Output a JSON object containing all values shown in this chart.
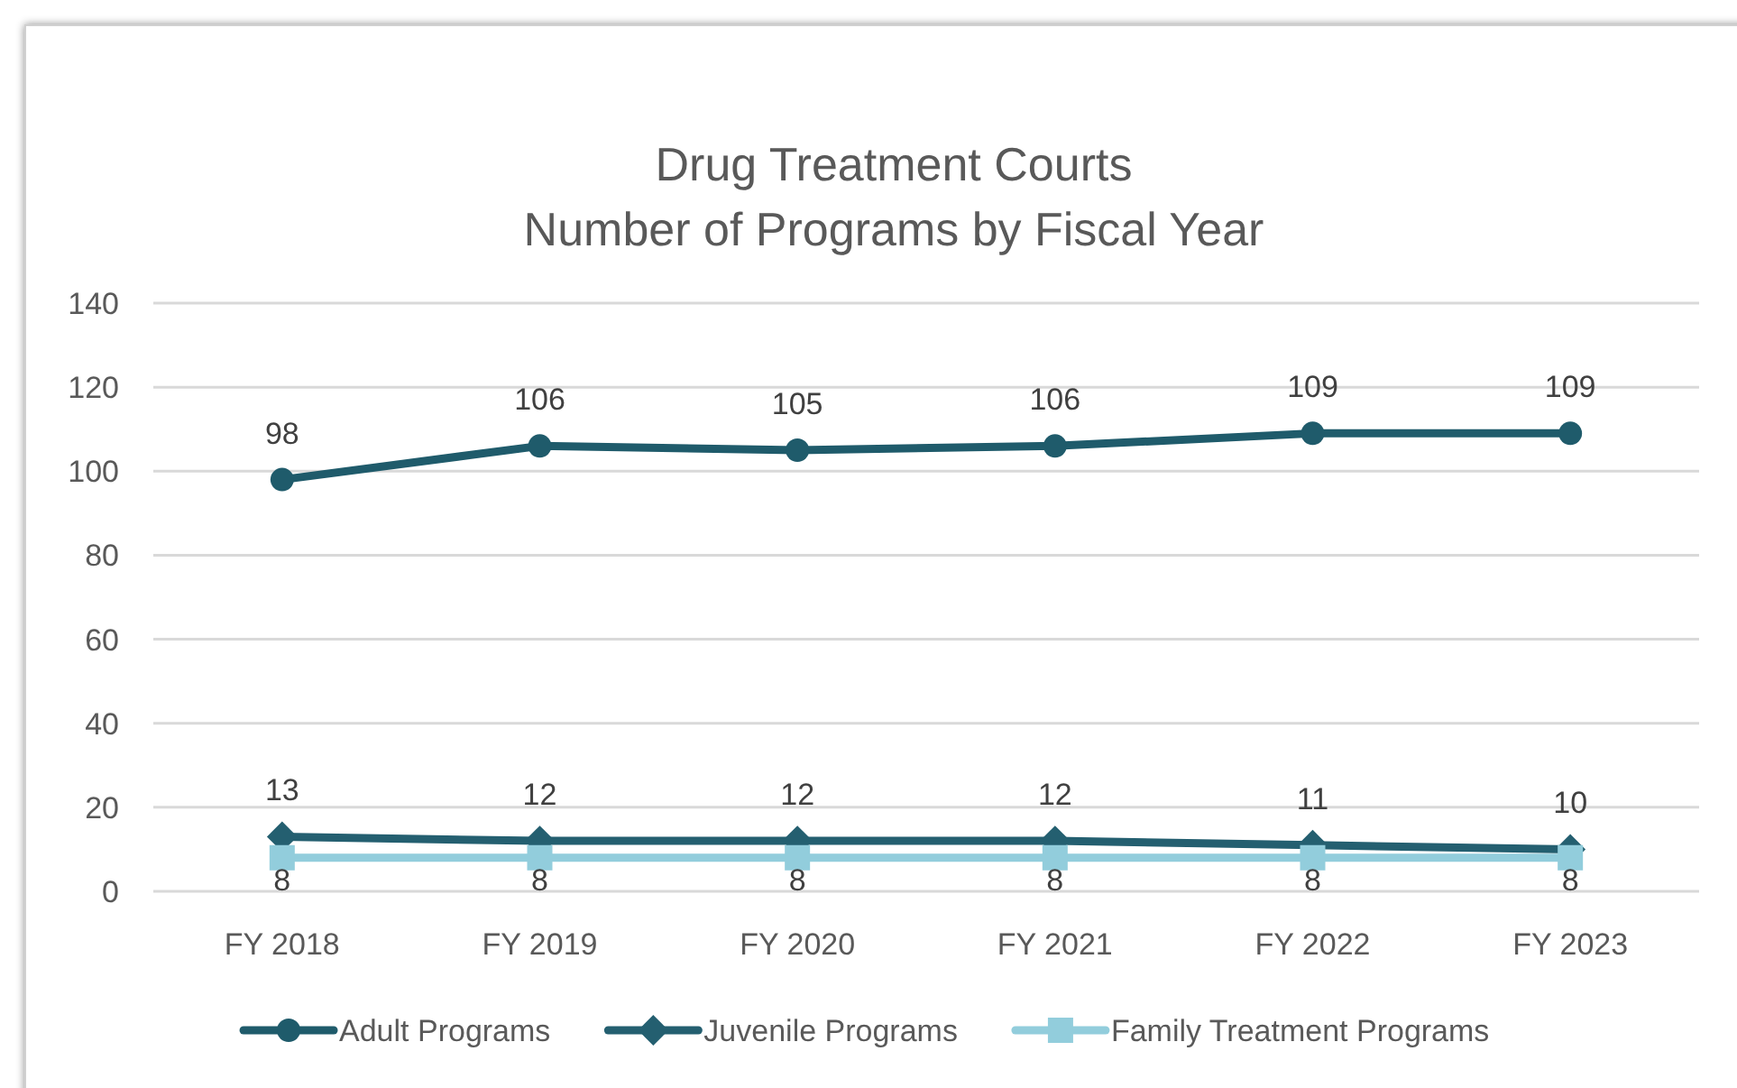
{
  "chart_data": {
    "type": "line",
    "title": "Drug Treatment Courts",
    "subtitle": "Number of Programs by Fiscal Year",
    "categories": [
      "FY 2018",
      "FY 2019",
      "FY 2020",
      "FY 2021",
      "FY 2022",
      "FY 2023"
    ],
    "series": [
      {
        "name": "Adult Programs",
        "color": "#1f5b6b",
        "marker": "circle",
        "values": [
          98,
          106,
          105,
          106,
          109,
          109
        ]
      },
      {
        "name": "Juvenile Programs",
        "color": "#245f70",
        "marker": "diamond",
        "values": [
          13,
          12,
          12,
          12,
          11,
          10
        ]
      },
      {
        "name": "Family Treatment Programs",
        "color": "#92cddc",
        "marker": "square",
        "values": [
          8,
          8,
          8,
          8,
          8,
          8
        ]
      }
    ],
    "ylim": [
      0,
      140
    ],
    "yticks": [
      0,
      20,
      40,
      60,
      80,
      100,
      120,
      140
    ],
    "grid": "y",
    "legend": "bottom",
    "data_labels": true,
    "line_style": "solid"
  }
}
